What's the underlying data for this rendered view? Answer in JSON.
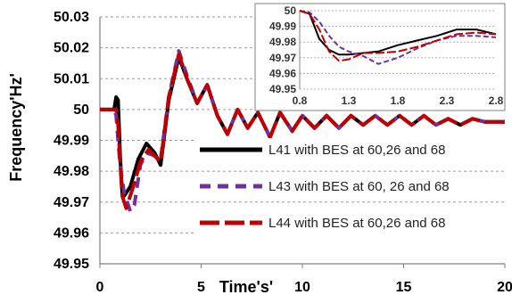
{
  "chart_data": [
    {
      "type": "line",
      "title": "",
      "xlabel": "Time's'",
      "ylabel": "Frequency'Hz'",
      "xlim": [
        0,
        20
      ],
      "ylim": [
        49.95,
        50.03
      ],
      "x_ticks": [
        "0",
        "5",
        "10",
        "15",
        "20"
      ],
      "y_ticks": [
        "49.95",
        "49.96",
        "49.97",
        "49.98",
        "49.99",
        "50",
        "50.01",
        "50.02",
        "50.03"
      ],
      "grid": true,
      "legend_position": "center-right",
      "series": [
        {
          "name": "L41 with BES at 60,26 and 68",
          "color": "#000000",
          "dash": "solid",
          "x": [
            0,
            0.7,
            0.8,
            0.9,
            1.0,
            1.1,
            1.2,
            1.5,
            1.9,
            2.3,
            2.7,
            3.0,
            3.4,
            3.9,
            4.3,
            4.8,
            5.3,
            5.8,
            6.3,
            6.8,
            7.3,
            7.8,
            8.4,
            8.9,
            9.5,
            10.0,
            10.6,
            11.2,
            11.8,
            12.4,
            13.0,
            13.6,
            14.2,
            14.8,
            15.4,
            16.0,
            16.6,
            17.2,
            17.8,
            18.4,
            19.0,
            19.6,
            20.0
          ],
          "y": [
            50.0,
            50.0,
            50.004,
            50.003,
            49.985,
            49.973,
            49.972,
            49.975,
            49.984,
            49.989,
            49.986,
            49.982,
            50.003,
            50.017,
            50.01,
            50.002,
            50.008,
            49.998,
            49.992,
            50.0,
            49.994,
            49.999,
            49.991,
            49.999,
            49.993,
            49.998,
            49.994,
            49.998,
            49.994,
            49.998,
            49.995,
            49.998,
            49.995,
            49.998,
            49.995,
            49.998,
            49.995,
            49.997,
            49.995,
            49.997,
            49.996,
            49.996,
            49.996
          ]
        },
        {
          "name": "L43 with BES at 60, 26 and 68",
          "color": "#7030A0",
          "dash": "dashed",
          "x": [
            0,
            0.7,
            0.8,
            0.9,
            1.0,
            1.2,
            1.5,
            1.7,
            2.0,
            2.3,
            2.7,
            3.0,
            3.4,
            3.9,
            4.3,
            4.8,
            5.3,
            5.8,
            6.3,
            6.8,
            7.3,
            7.8,
            8.4,
            8.9,
            9.5,
            10.0,
            10.6,
            11.2,
            11.8,
            12.4,
            13.0,
            13.6,
            14.2,
            14.8,
            15.4,
            16.0,
            16.6,
            17.2,
            17.8,
            18.4,
            19.0,
            19.6,
            20.0
          ],
          "y": [
            50.0,
            50.0,
            49.998,
            49.99,
            49.982,
            49.973,
            49.967,
            49.969,
            49.982,
            49.986,
            49.985,
            49.984,
            50.004,
            50.019,
            50.011,
            50.002,
            50.008,
            49.998,
            49.992,
            50.0,
            49.994,
            49.999,
            49.991,
            49.999,
            49.993,
            49.998,
            49.994,
            49.998,
            49.994,
            49.998,
            49.995,
            49.998,
            49.995,
            49.998,
            49.995,
            49.998,
            49.995,
            49.997,
            49.995,
            49.997,
            49.996,
            49.996,
            49.996
          ]
        },
        {
          "name": "L44 with BES at 60,26 and 68",
          "color": "#C00000",
          "dash": "long-dash",
          "x": [
            0,
            0.7,
            0.8,
            0.9,
            1.0,
            1.1,
            1.3,
            1.6,
            2.0,
            2.4,
            2.7,
            3.0,
            3.4,
            3.9,
            4.3,
            4.8,
            5.3,
            5.8,
            6.3,
            6.8,
            7.3,
            7.8,
            8.4,
            8.9,
            9.5,
            10.0,
            10.6,
            11.2,
            11.8,
            12.4,
            13.0,
            13.6,
            14.2,
            14.8,
            15.4,
            16.0,
            16.6,
            17.2,
            17.8,
            18.4,
            19.0,
            19.6,
            20.0
          ],
          "y": [
            50.0,
            50.0,
            50.0,
            49.995,
            49.983,
            49.972,
            49.968,
            49.974,
            49.983,
            49.987,
            49.985,
            49.983,
            50.004,
            50.018,
            50.01,
            50.002,
            50.008,
            49.998,
            49.992,
            50.0,
            49.994,
            49.999,
            49.991,
            49.999,
            49.993,
            49.998,
            49.994,
            49.998,
            49.994,
            49.998,
            49.995,
            49.998,
            49.995,
            49.998,
            49.995,
            49.998,
            49.995,
            49.997,
            49.995,
            49.997,
            49.996,
            49.996,
            49.996
          ]
        }
      ]
    },
    {
      "type": "line",
      "title": "",
      "xlabel": "",
      "ylabel": "",
      "xlim": [
        0.8,
        2.8
      ],
      "ylim": [
        49.95,
        50.0
      ],
      "x_ticks": [
        "0.8",
        "1.3",
        "1.8",
        "2.3",
        "2.8"
      ],
      "y_ticks": [
        "49.95",
        "49.96",
        "49.97",
        "49.98",
        "49.99",
        "50"
      ],
      "grid": true,
      "series": [
        {
          "name": "L41 with BES at 60,26 and 68",
          "color": "#000000",
          "x": [
            0.8,
            0.9,
            0.95,
            1.0,
            1.1,
            1.2,
            1.3,
            1.45,
            1.6,
            1.8,
            2.0,
            2.2,
            2.4,
            2.6,
            2.8
          ],
          "y": [
            50.0,
            49.998,
            49.99,
            49.982,
            49.975,
            49.972,
            49.972,
            49.973,
            49.974,
            49.978,
            49.981,
            49.984,
            49.988,
            49.988,
            49.985
          ]
        },
        {
          "name": "L43 with BES at 60, 26 and 68",
          "color": "#7030A0",
          "x": [
            0.8,
            0.9,
            1.0,
            1.1,
            1.2,
            1.3,
            1.45,
            1.6,
            1.8,
            2.0,
            2.2,
            2.4,
            2.6,
            2.8
          ],
          "y": [
            50.0,
            49.999,
            49.993,
            49.984,
            49.977,
            49.974,
            49.971,
            49.966,
            49.97,
            49.976,
            49.981,
            49.984,
            49.984,
            49.983
          ]
        },
        {
          "name": "L44 with BES at 60,26 and 68",
          "color": "#C00000",
          "x": [
            0.8,
            0.9,
            1.0,
            1.1,
            1.2,
            1.3,
            1.45,
            1.6,
            1.8,
            2.0,
            2.2,
            2.4,
            2.6,
            2.8
          ],
          "y": [
            50.0,
            49.998,
            49.988,
            49.974,
            49.968,
            49.969,
            49.973,
            49.973,
            49.974,
            49.977,
            49.981,
            49.985,
            49.986,
            49.985
          ]
        }
      ]
    }
  ]
}
